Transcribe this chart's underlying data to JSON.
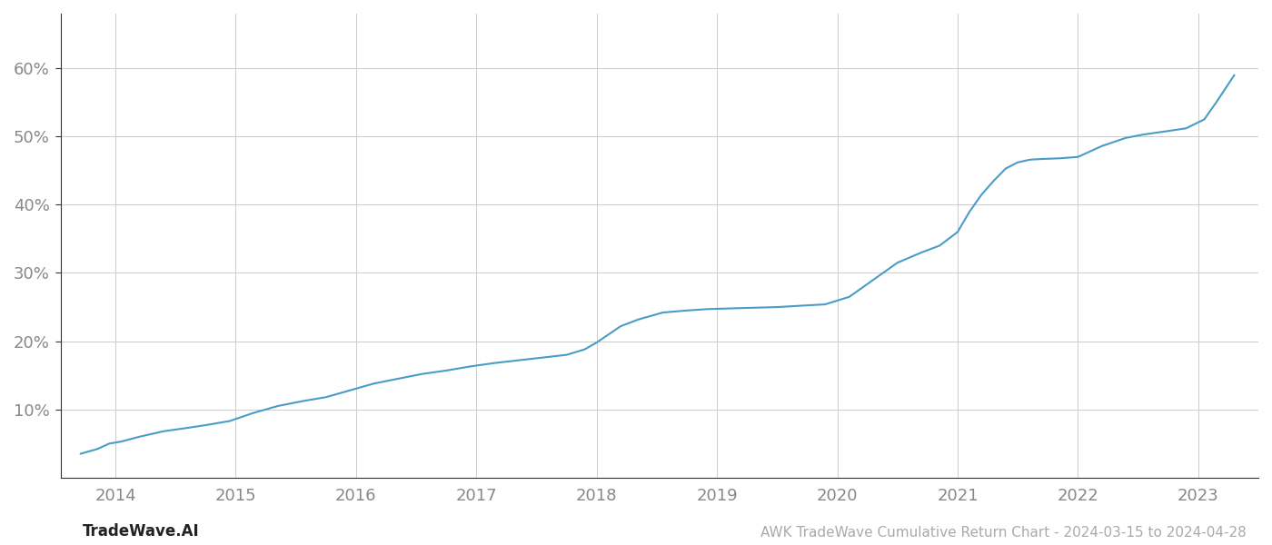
{
  "title": "AWK TradeWave Cumulative Return Chart - 2024-03-15 to 2024-04-28",
  "watermark": "TradeWave.AI",
  "line_color": "#4a9cc7",
  "background_color": "#ffffff",
  "grid_color": "#cccccc",
  "tick_label_color": "#888888",
  "footer_text_color": "#aaaaaa",
  "watermark_color": "#222222",
  "xlim": [
    2013.55,
    2023.5
  ],
  "ylim": [
    0.0,
    0.68
  ],
  "yticks": [
    0.1,
    0.2,
    0.3,
    0.4,
    0.5,
    0.6
  ],
  "ytick_labels": [
    "10%",
    "20%",
    "30%",
    "40%",
    "50%",
    "60%"
  ],
  "xtick_years": [
    2014,
    2015,
    2016,
    2017,
    2018,
    2019,
    2020,
    2021,
    2022,
    2023
  ],
  "x_data": [
    2013.71,
    2013.85,
    2013.95,
    2014.05,
    2014.2,
    2014.4,
    2014.6,
    2014.75,
    2014.85,
    2014.95,
    2015.15,
    2015.35,
    2015.55,
    2015.75,
    2015.95,
    2016.15,
    2016.35,
    2016.55,
    2016.75,
    2016.95,
    2017.15,
    2017.35,
    2017.55,
    2017.75,
    2017.9,
    2018.0,
    2018.1,
    2018.2,
    2018.35,
    2018.55,
    2018.75,
    2018.92,
    2019.1,
    2019.3,
    2019.5,
    2019.7,
    2019.9,
    2020.1,
    2020.3,
    2020.5,
    2020.7,
    2020.85,
    2021.0,
    2021.1,
    2021.2,
    2021.3,
    2021.4,
    2021.5,
    2021.6,
    2021.7,
    2021.85,
    2022.0,
    2022.2,
    2022.4,
    2022.55,
    2022.75,
    2022.9,
    2023.05,
    2023.15,
    2023.3
  ],
  "y_data": [
    0.035,
    0.042,
    0.05,
    0.053,
    0.06,
    0.068,
    0.073,
    0.077,
    0.08,
    0.083,
    0.095,
    0.105,
    0.112,
    0.118,
    0.128,
    0.138,
    0.145,
    0.152,
    0.157,
    0.163,
    0.168,
    0.172,
    0.176,
    0.18,
    0.188,
    0.198,
    0.21,
    0.222,
    0.232,
    0.242,
    0.245,
    0.247,
    0.248,
    0.249,
    0.25,
    0.252,
    0.254,
    0.265,
    0.29,
    0.315,
    0.33,
    0.34,
    0.36,
    0.39,
    0.415,
    0.435,
    0.453,
    0.462,
    0.466,
    0.467,
    0.468,
    0.47,
    0.486,
    0.498,
    0.503,
    0.508,
    0.512,
    0.525,
    0.55,
    0.59
  ],
  "line_width": 1.5,
  "spine_color": "#aaaaaa",
  "left_spine_color": "#333333"
}
